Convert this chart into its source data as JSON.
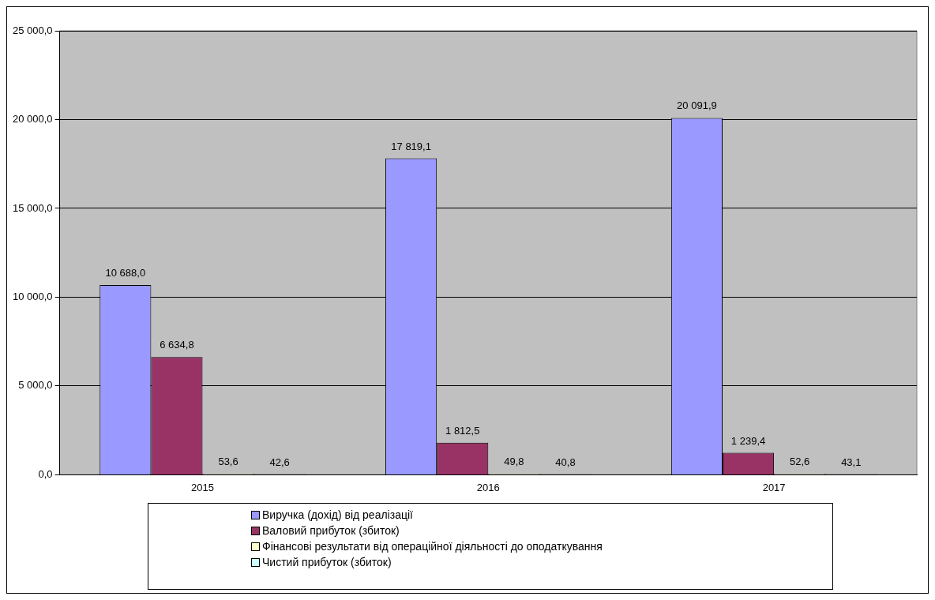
{
  "chart_data": {
    "type": "bar",
    "categories": [
      "2015",
      "2016",
      "2017"
    ],
    "series": [
      {
        "name": "Виручка (дохід) від реалізації",
        "color": "#9999ff",
        "values": [
          10688.0,
          17819.1,
          20091.9
        ],
        "value_labels": [
          "10 688,0",
          "17 819,1",
          "20 091,9"
        ]
      },
      {
        "name": "Валовий прибуток (збиток)",
        "color": "#993366",
        "values": [
          6634.8,
          1812.5,
          1239.4
        ],
        "value_labels": [
          "6 634,8",
          "1 812,5",
          "1 239,4"
        ]
      },
      {
        "name": "Фінансові результати від операційної діяльності до оподаткування",
        "color": "#ffffcc",
        "values": [
          53.6,
          49.8,
          52.6
        ],
        "value_labels": [
          "53,6",
          "49,8",
          "52,6"
        ]
      },
      {
        "name": "Чистий прибуток (збиток)",
        "color": "#ccffff",
        "values": [
          42.6,
          40.8,
          43.1
        ],
        "value_labels": [
          "42,6",
          "40,8",
          "43,1"
        ]
      }
    ],
    "ylim": [
      0,
      25000
    ],
    "yticks": [
      {
        "value": 0,
        "label": "0,0"
      },
      {
        "value": 5000,
        "label": "5 000,0"
      },
      {
        "value": 10000,
        "label": "10 000,0"
      },
      {
        "value": 15000,
        "label": "15 000,0"
      },
      {
        "value": 20000,
        "label": "20 000,0"
      },
      {
        "value": 25000,
        "label": "25 000,0"
      }
    ],
    "grid": "y",
    "legend": "bottom"
  }
}
